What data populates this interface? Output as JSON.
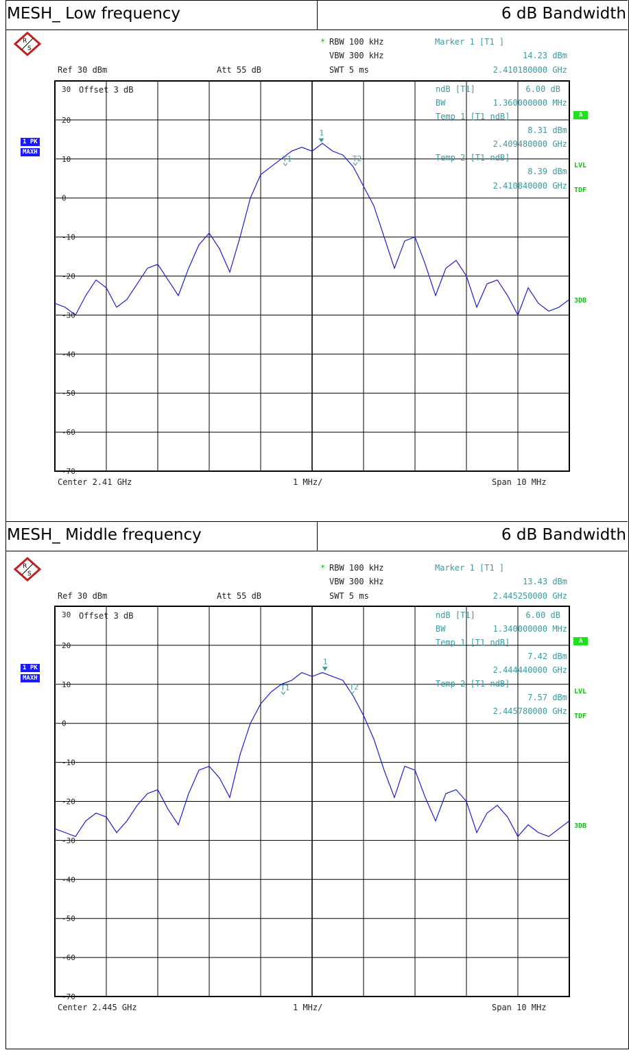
{
  "colors": {
    "trace": "#1a1ad9",
    "marker": "#3a9aa0",
    "grid": "#000000",
    "badge_blue": "#1a1aff",
    "badge_green": "#20e020"
  },
  "icons": [
    "rohde-schwarz-logo-icon"
  ],
  "panels": [
    {
      "title_left": "MESH_ Low frequency",
      "title_right": "6 dB Bandwidth",
      "rbw": "RBW 100 kHz",
      "vbw": "VBW 300 kHz",
      "swt": "SWT 5 ms",
      "ref": "Ref  30 dBm",
      "att": "Att  55 dB",
      "offset": "Offset  3 dB",
      "marker_title": "Marker 1 [T1 ]",
      "marker_level": "14.23 dBm",
      "marker_freq": "2.410180000 GHz",
      "ndb_label": "ndB [T1]",
      "ndb_value": "6.00 dB",
      "bw_label": "BW",
      "bw_value": "1.360000000 MHz",
      "temp1_label": "Temp 1 [T1 ndB]",
      "temp1_level": "8.31 dBm",
      "temp1_freq": "2.409480000 GHz",
      "temp2_label": "Temp 2 [T1 ndB]",
      "temp2_level": "8.39 dBm",
      "temp2_freq": "2.410840000 GHz",
      "badge_pk": "1 PK",
      "badge_maxh": "MAXH",
      "badge_a": "A",
      "lvl": "LVL",
      "tdf": "TDF",
      "threedb": "3DB",
      "center": "Center  2.41 GHz",
      "div": "1 MHz/",
      "span": "Span  10 MHz",
      "marker_labels": [
        "1",
        "T1",
        "T2"
      ],
      "y_ticks": [
        "30",
        "20",
        "10",
        "0",
        "-10",
        "-20",
        "-30",
        "-40",
        "-50",
        "-60",
        "-70"
      ]
    },
    {
      "title_left": "MESH_ Middle frequency",
      "title_right": "6 dB Bandwidth",
      "rbw": "RBW 100 kHz",
      "vbw": "VBW 300 kHz",
      "swt": "SWT 5 ms",
      "ref": "Ref  30 dBm",
      "att": "Att  55 dB",
      "offset": "Offset  3 dB",
      "marker_title": "Marker 1 [T1 ]",
      "marker_level": "13.43 dBm",
      "marker_freq": "2.445250000 GHz",
      "ndb_label": "ndB [T1]",
      "ndb_value": "6.00 dB",
      "bw_label": "BW",
      "bw_value": "1.340000000 MHz",
      "temp1_label": "Temp 1 [T1 ndB]",
      "temp1_level": "7.42 dBm",
      "temp1_freq": "2.444440000 GHz",
      "temp2_label": "Temp 2 [T1 ndB]",
      "temp2_level": "7.57 dBm",
      "temp2_freq": "2.445780000 GHz",
      "badge_pk": "1 PK",
      "badge_maxh": "MAXH",
      "badge_a": "A",
      "lvl": "LVL",
      "tdf": "TDF",
      "threedb": "3DB",
      "center": "Center  2.445 GHz",
      "div": "1 MHz/",
      "span": "Span  10 MHz",
      "marker_labels": [
        "1",
        "T1",
        "T2"
      ],
      "y_ticks": [
        "30",
        "20",
        "10",
        "0",
        "-10",
        "-20",
        "-30",
        "-40",
        "-50",
        "-60",
        "-70"
      ]
    }
  ],
  "chart_data": [
    {
      "type": "line",
      "x_unit": "MHz offset from center",
      "xlim": [
        -5,
        5
      ],
      "ylim": [
        -70,
        30
      ],
      "grid": true,
      "series": [
        {
          "x": [
            -5.0,
            -4.8,
            -4.6,
            -4.4,
            -4.2,
            -4.0,
            -3.8,
            -3.6,
            -3.4,
            -3.2,
            -3.0,
            -2.8,
            -2.6,
            -2.4,
            -2.2,
            -2.0,
            -1.8,
            -1.6,
            -1.4,
            -1.2,
            -1.0,
            -0.8,
            -0.6,
            -0.4,
            -0.2,
            0.0,
            0.2,
            0.4,
            0.6,
            0.8,
            1.0,
            1.2,
            1.4,
            1.6,
            1.8,
            2.0,
            2.2,
            2.4,
            2.6,
            2.8,
            3.0,
            3.2,
            3.4,
            3.6,
            3.8,
            4.0,
            4.2,
            4.4,
            4.6,
            4.8,
            5.0
          ],
          "y": [
            -27,
            -28,
            -30,
            -25,
            -21,
            -23,
            -28,
            -26,
            -22,
            -18,
            -17,
            -21,
            -25,
            -18,
            -12,
            -9,
            -13,
            -19,
            -10,
            0,
            6,
            8,
            10,
            12,
            13,
            12,
            14,
            12,
            11,
            8,
            3,
            -2,
            -10,
            -18,
            -11,
            -10,
            -17,
            -25,
            -18,
            -16,
            -20,
            -28,
            -22,
            -21,
            -25,
            -30,
            -23,
            -27,
            -29,
            -28,
            -26
          ]
        }
      ],
      "markers": [
        {
          "name": "1",
          "x": 0.18,
          "y": 14.23
        },
        {
          "name": "T1",
          "x": -0.52,
          "y": 8.31
        },
        {
          "name": "T2",
          "x": 0.84,
          "y": 8.39
        }
      ]
    },
    {
      "type": "line",
      "x_unit": "MHz offset from center",
      "xlim": [
        -5,
        5
      ],
      "ylim": [
        -70,
        30
      ],
      "grid": true,
      "series": [
        {
          "x": [
            -5.0,
            -4.8,
            -4.6,
            -4.4,
            -4.2,
            -4.0,
            -3.8,
            -3.6,
            -3.4,
            -3.2,
            -3.0,
            -2.8,
            -2.6,
            -2.4,
            -2.2,
            -2.0,
            -1.8,
            -1.6,
            -1.4,
            -1.2,
            -1.0,
            -0.8,
            -0.6,
            -0.4,
            -0.2,
            0.0,
            0.2,
            0.4,
            0.6,
            0.8,
            1.0,
            1.2,
            1.4,
            1.6,
            1.8,
            2.0,
            2.2,
            2.4,
            2.6,
            2.8,
            3.0,
            3.2,
            3.4,
            3.6,
            3.8,
            4.0,
            4.2,
            4.4,
            4.6,
            4.8,
            5.0
          ],
          "y": [
            -27,
            -28,
            -29,
            -25,
            -23,
            -24,
            -28,
            -25,
            -21,
            -18,
            -17,
            -22,
            -26,
            -18,
            -12,
            -11,
            -14,
            -19,
            -8,
            0,
            5,
            8,
            10,
            11,
            13,
            12,
            13,
            12,
            11,
            7,
            2,
            -4,
            -12,
            -19,
            -11,
            -12,
            -19,
            -25,
            -18,
            -17,
            -20,
            -28,
            -23,
            -21,
            -24,
            -29,
            -26,
            -28,
            -29,
            -27,
            -25
          ]
        }
      ],
      "markers": [
        {
          "name": "1",
          "x": 0.25,
          "y": 13.43
        },
        {
          "name": "T1",
          "x": -0.56,
          "y": 7.42
        },
        {
          "name": "T2",
          "x": 0.78,
          "y": 7.57
        }
      ]
    }
  ]
}
